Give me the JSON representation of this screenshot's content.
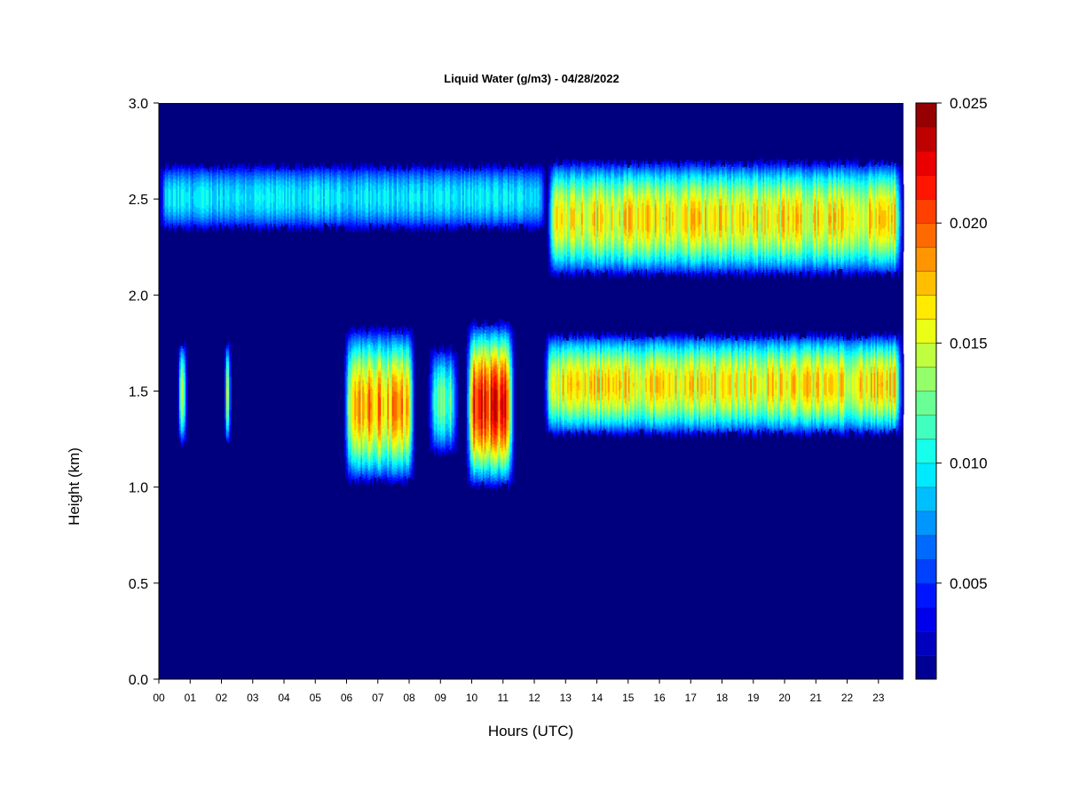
{
  "chart_data": {
    "type": "heatmap",
    "title": "Liquid Water (g/m3) - 04/28/2022",
    "xlabel": "Hours (UTC)",
    "ylabel": "Height (km)",
    "xlim": [
      0,
      23.8
    ],
    "ylim": [
      0,
      3.0
    ],
    "x_ticks": [
      "00",
      "01",
      "02",
      "03",
      "04",
      "05",
      "06",
      "07",
      "08",
      "09",
      "10",
      "11",
      "12",
      "13",
      "14",
      "15",
      "16",
      "17",
      "18",
      "19",
      "20",
      "21",
      "22",
      "23"
    ],
    "y_ticks": [
      "0.0",
      "0.5",
      "1.0",
      "1.5",
      "2.0",
      "2.5",
      "3.0"
    ],
    "colorbar": {
      "min": 0.001,
      "max": 0.025,
      "levels": 24,
      "ticks": [
        "0.005",
        "0.010",
        "0.015",
        "0.020",
        "0.025"
      ],
      "tick_values": [
        0.005,
        0.01,
        0.015,
        0.02,
        0.025
      ]
    },
    "background_value": 0.001,
    "colors": {
      "background": "#00007f",
      "scale": [
        "#00007f",
        "#0000ff",
        "#00ffff",
        "#ffff00",
        "#ff0000",
        "#7f0000"
      ]
    },
    "cloud_layers": [
      {
        "name": "upper",
        "x_start": 0.0,
        "x_end": 12.4,
        "base_km": 2.32,
        "top_km": 2.7,
        "peak_value": 0.011
      },
      {
        "name": "upper",
        "x_start": 12.4,
        "x_end": 23.8,
        "base_km": 2.08,
        "top_km": 2.72,
        "peak_value": 0.019
      },
      {
        "name": "lower",
        "x_start": 0.6,
        "x_end": 0.9,
        "base_km": 1.2,
        "top_km": 1.78,
        "peak_value": 0.016
      },
      {
        "name": "lower",
        "x_start": 2.1,
        "x_end": 2.3,
        "base_km": 1.2,
        "top_km": 1.78,
        "peak_value": 0.015
      },
      {
        "name": "lower",
        "x_start": 5.9,
        "x_end": 8.2,
        "base_km": 1.0,
        "top_km": 1.85,
        "peak_value": 0.021
      },
      {
        "name": "lower",
        "x_start": 8.6,
        "x_end": 9.6,
        "base_km": 1.15,
        "top_km": 1.75,
        "peak_value": 0.014
      },
      {
        "name": "lower",
        "x_start": 9.8,
        "x_end": 11.4,
        "base_km": 0.98,
        "top_km": 1.88,
        "peak_value": 0.024
      },
      {
        "name": "lower",
        "x_start": 12.3,
        "x_end": 23.8,
        "base_km": 1.25,
        "top_km": 1.82,
        "peak_value": 0.019
      }
    ]
  }
}
